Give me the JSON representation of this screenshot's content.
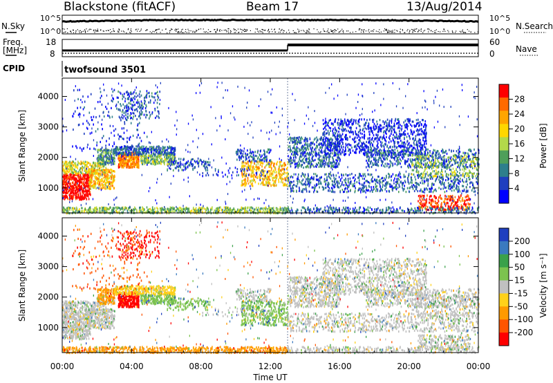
{
  "header": {
    "station": "Blackstone (fitACF)",
    "beam": "Beam 17",
    "date": "13/Aug/2014"
  },
  "strip_labels": {
    "nsky": "N.Sky",
    "nsearch": "N.Search",
    "freq_line1": "Freq.",
    "freq_line2": "[MHz]",
    "nave": "Nave",
    "cpid": "CPID",
    "cpid_value": "twofsound 3501"
  },
  "strip_ticks": {
    "noise_left": [
      "10^5",
      "10^0"
    ],
    "noise_right": [
      "10^5",
      "10^0"
    ],
    "freq_left": [
      "18",
      "8"
    ],
    "nave_right": [
      "60",
      "0"
    ]
  },
  "chart_data": [
    {
      "type": "heatmap",
      "panel": "power",
      "xlabel": "Time UT",
      "ylabel": "Slant Range [km]",
      "xticks": [
        "00:00",
        "04:00",
        "08:00",
        "12:00",
        "16:00",
        "20:00",
        "00:00"
      ],
      "yticks": [
        "1000",
        "2000",
        "3000",
        "4000"
      ],
      "ylim": [
        180,
        4600
      ],
      "colorbar_label": "Power [dB]",
      "colorbar_ticks": [
        "28",
        "24",
        "20",
        "16",
        "12",
        "8",
        "4"
      ],
      "colorbar_colors": [
        "#ff0000",
        "#ff6a00",
        "#ffa500",
        "#ffd700",
        "#b3d94a",
        "#4f9f5a",
        "#2e7f8c",
        "#1f3fbf",
        "#0000ff"
      ]
    },
    {
      "type": "heatmap",
      "panel": "velocity",
      "xlabel": "Time UT",
      "ylabel": "Slant Range [km]",
      "xticks": [
        "00:00",
        "04:00",
        "08:00",
        "12:00",
        "16:00",
        "20:00",
        "00:00"
      ],
      "yticks": [
        "1000",
        "2000",
        "3000",
        "4000"
      ],
      "ylim": [
        180,
        4600
      ],
      "colorbar_label": "Velocity [m s⁻¹]",
      "colorbar_ticks": [
        "200",
        "100",
        "50",
        "15",
        "-15",
        "-50",
        "-100",
        "-200"
      ],
      "colorbar_colors": [
        "#1f3fbf",
        "#3a7abf",
        "#3aa14a",
        "#7cc34f",
        "#c0c0c0",
        "#ffd11a",
        "#ff9a00",
        "#ff5500",
        "#ff0000"
      ]
    }
  ]
}
